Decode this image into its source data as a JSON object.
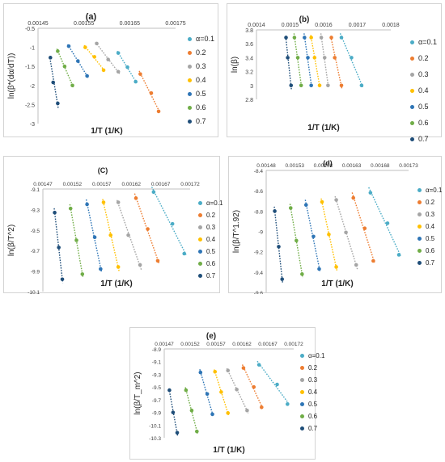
{
  "xlabel": "1/T (1/K)",
  "legend_labels": [
    "α=0.1",
    "0.2",
    "0.3",
    "0.4",
    "0.5",
    "0.6",
    "0.7"
  ],
  "series_colors": [
    "#4bacc6",
    "#ed7d31",
    "#a5a5a5",
    "#ffc000",
    "#2e75b6",
    "#70ad47",
    "#1f4e79"
  ],
  "chart_data": [
    {
      "type": "scatter",
      "title": "(a)",
      "xlabel": "1/T (1/K)",
      "ylabel": "ln(β*(dα/dT))",
      "xlim": [
        0.00145,
        0.00175
      ],
      "ylim": [
        -3,
        -0.5
      ],
      "xticks": [
        "0.00145",
        "0.00155",
        "0.00165",
        "0.00175"
      ],
      "yticks": [
        "-0.5",
        "-1",
        "-1.5",
        "-2",
        "-2.5",
        "-3"
      ],
      "grid": false,
      "legend": "right",
      "series": [
        {
          "name": "α=0.1",
          "x": [
            0.001625,
            0.001645,
            0.001663
          ],
          "y": [
            -1.15,
            -1.52,
            -1.9
          ]
        },
        {
          "name": "0.2",
          "x": [
            0.001673,
            0.001697,
            0.001713
          ],
          "y": [
            -1.7,
            -2.2,
            -2.68
          ]
        },
        {
          "name": "0.3",
          "x": [
            0.001578,
            0.001603,
            0.001625
          ],
          "y": [
            -0.9,
            -1.32,
            -1.64
          ]
        },
        {
          "name": "0.4",
          "x": [
            0.001553,
            0.001573,
            0.001593
          ],
          "y": [
            -1.0,
            -1.25,
            -1.6
          ]
        },
        {
          "name": "0.5",
          "x": [
            0.001517,
            0.001537,
            0.001557
          ],
          "y": [
            -0.97,
            -1.36,
            -1.75
          ]
        },
        {
          "name": "0.6",
          "x": [
            0.001493,
            0.001508,
            0.001525
          ],
          "y": [
            -1.1,
            -1.5,
            -2.0
          ]
        },
        {
          "name": "0.7",
          "x": [
            0.001477,
            0.001483,
            0.001493
          ],
          "y": [
            -1.27,
            -1.92,
            -2.47
          ]
        }
      ]
    },
    {
      "type": "scatter",
      "title": "(b)",
      "xlabel": "1/T (1/K)",
      "ylabel": "ln(β)",
      "xlim": [
        0.0014,
        0.0018
      ],
      "ylim": [
        2.8,
        3.8
      ],
      "xticks": [
        "0.0014",
        "0.0015",
        "0.0016",
        "0.0017",
        "0.0018"
      ],
      "yticks": [
        "3.8",
        "3.6",
        "3.4",
        "3.2",
        "3",
        "2.8"
      ],
      "grid": false,
      "legend": "right",
      "series": [
        {
          "name": "α=0.1",
          "x": [
            0.001653,
            0.001683,
            0.001713
          ],
          "y": [
            3.69,
            3.4,
            3.0
          ]
        },
        {
          "name": "0.2",
          "x": [
            0.001623,
            0.001633,
            0.001653
          ],
          "y": [
            3.69,
            3.4,
            3.0
          ]
        },
        {
          "name": "0.3",
          "x": [
            0.001593,
            0.001603,
            0.001613
          ],
          "y": [
            3.69,
            3.4,
            3.0
          ]
        },
        {
          "name": "0.4",
          "x": [
            0.001563,
            0.001573,
            0.001588
          ],
          "y": [
            3.69,
            3.4,
            3.0
          ]
        },
        {
          "name": "0.5",
          "x": [
            0.001543,
            0.001553,
            0.001563
          ],
          "y": [
            3.69,
            3.4,
            3.0
          ]
        },
        {
          "name": "0.6",
          "x": [
            0.001513,
            0.001523,
            0.001533
          ],
          "y": [
            3.69,
            3.4,
            3.0
          ]
        },
        {
          "name": "0.7",
          "x": [
            0.001488,
            0.001493,
            0.001503
          ],
          "y": [
            3.69,
            3.4,
            3.0
          ]
        }
      ]
    },
    {
      "type": "scatter",
      "title": "(C)",
      "xlabel": "1/T (1/K)",
      "ylabel": "ln(β/T^2)",
      "xlim": [
        0.00147,
        0.00172
      ],
      "ylim": [
        -10.1,
        -9.1
      ],
      "xticks": [
        "0.00147",
        "0.00152",
        "0.00157",
        "0.00162",
        "0.00167",
        "0.00172"
      ],
      "yticks": [
        "-9.1",
        "-9.3",
        "-9.5",
        "-9.7",
        "-9.9",
        "-10.1"
      ],
      "grid": false,
      "legend": "right",
      "series": [
        {
          "name": "α=0.1",
          "x": [
            0.001658,
            0.00169,
            0.00171
          ],
          "y": [
            -9.13,
            -9.44,
            -9.73
          ]
        },
        {
          "name": "0.2",
          "x": [
            0.001628,
            0.001648,
            0.001665
          ],
          "y": [
            -9.19,
            -9.49,
            -9.8
          ]
        },
        {
          "name": "0.3",
          "x": [
            0.001598,
            0.001615,
            0.001635
          ],
          "y": [
            -9.23,
            -9.55,
            -9.84
          ]
        },
        {
          "name": "0.4",
          "x": [
            0.001573,
            0.001585,
            0.001598
          ],
          "y": [
            -9.23,
            -9.55,
            -9.86
          ]
        },
        {
          "name": "0.5",
          "x": [
            0.001545,
            0.001558,
            0.001568
          ],
          "y": [
            -9.25,
            -9.57,
            -9.88
          ]
        },
        {
          "name": "0.6",
          "x": [
            0.001517,
            0.001527,
            0.001537
          ],
          "y": [
            -9.29,
            -9.6,
            -9.93
          ]
        },
        {
          "name": "0.7",
          "x": [
            0.00149,
            0.001497,
            0.001503
          ],
          "y": [
            -9.33,
            -9.67,
            -9.98
          ]
        }
      ]
    },
    {
      "type": "scatter",
      "title": "(d)",
      "xlabel": "1/T (1/K)",
      "ylabel": "ln(β/T^1.92)",
      "xlim": [
        0.00148,
        0.00173
      ],
      "ylim": [
        -9.6,
        -8.4
      ],
      "xticks": [
        "0.00148",
        "0.00153",
        "0.00158",
        "0.00163",
        "0.00168",
        "0.00173"
      ],
      "yticks": [
        "-8.4",
        "-8.6",
        "-8.8",
        "-9",
        "-9.2",
        "-9.4",
        "-9.6"
      ],
      "grid": false,
      "legend": "right",
      "series": [
        {
          "name": "α=0.1",
          "x": [
            0.001663,
            0.001693,
            0.001713
          ],
          "y": [
            -8.62,
            -8.92,
            -9.23
          ]
        },
        {
          "name": "0.2",
          "x": [
            0.001633,
            0.001653,
            0.001668
          ],
          "y": [
            -8.67,
            -8.97,
            -9.29
          ]
        },
        {
          "name": "0.3",
          "x": [
            0.001603,
            0.00162,
            0.001638
          ],
          "y": [
            -8.69,
            -9.01,
            -9.33
          ]
        },
        {
          "name": "0.4",
          "x": [
            0.001578,
            0.00159,
            0.001603
          ],
          "y": [
            -8.71,
            -9.03,
            -9.35
          ]
        },
        {
          "name": "0.5",
          "x": [
            0.00155,
            0.001563,
            0.001573
          ],
          "y": [
            -8.74,
            -9.05,
            -9.37
          ]
        },
        {
          "name": "0.6",
          "x": [
            0.001523,
            0.001533,
            0.001543
          ],
          "y": [
            -8.77,
            -9.09,
            -9.42
          ]
        },
        {
          "name": "0.7",
          "x": [
            0.001495,
            0.001502,
            0.001508
          ],
          "y": [
            -8.8,
            -9.15,
            -9.47
          ]
        }
      ]
    },
    {
      "type": "scatter",
      "title": "(e)",
      "xlabel": "1/T (1/K)",
      "ylabel": "ln(β/T_m^2)",
      "xlim": [
        0.00147,
        0.00172
      ],
      "ylim": [
        -10.3,
        -8.9
      ],
      "xticks": [
        "0.00147",
        "0.00152",
        "0.00157",
        "0.00162",
        "0.00167",
        "0.00172"
      ],
      "yticks": [
        "-8.9",
        "-9.1",
        "-9.3",
        "-9.5",
        "-9.7",
        "-9.9",
        "-10.1",
        "-10.3"
      ],
      "grid": false,
      "legend": "right",
      "series": [
        {
          "name": "α=0.1",
          "x": [
            0.001653,
            0.001688,
            0.001708
          ],
          "y": [
            -9.15,
            -9.46,
            -9.77
          ]
        },
        {
          "name": "0.2",
          "x": [
            0.001623,
            0.001643,
            0.001658
          ],
          "y": [
            -9.2,
            -9.5,
            -9.82
          ]
        },
        {
          "name": "0.3",
          "x": [
            0.001593,
            0.00161,
            0.00163
          ],
          "y": [
            -9.24,
            -9.54,
            -9.87
          ]
        },
        {
          "name": "0.4",
          "x": [
            0.001568,
            0.00158,
            0.001593
          ],
          "y": [
            -9.26,
            -9.58,
            -9.91
          ]
        },
        {
          "name": "0.5",
          "x": [
            0.00154,
            0.001553,
            0.001563
          ],
          "y": [
            -9.27,
            -9.61,
            -9.93
          ]
        },
        {
          "name": "0.6",
          "x": [
            0.001512,
            0.001523,
            0.001533
          ],
          "y": [
            -9.55,
            -9.87,
            -10.2
          ]
        },
        {
          "name": "0.7",
          "x": [
            0.00148,
            0.001487,
            0.001495
          ],
          "y": [
            -9.55,
            -9.9,
            -10.22
          ]
        }
      ]
    }
  ]
}
